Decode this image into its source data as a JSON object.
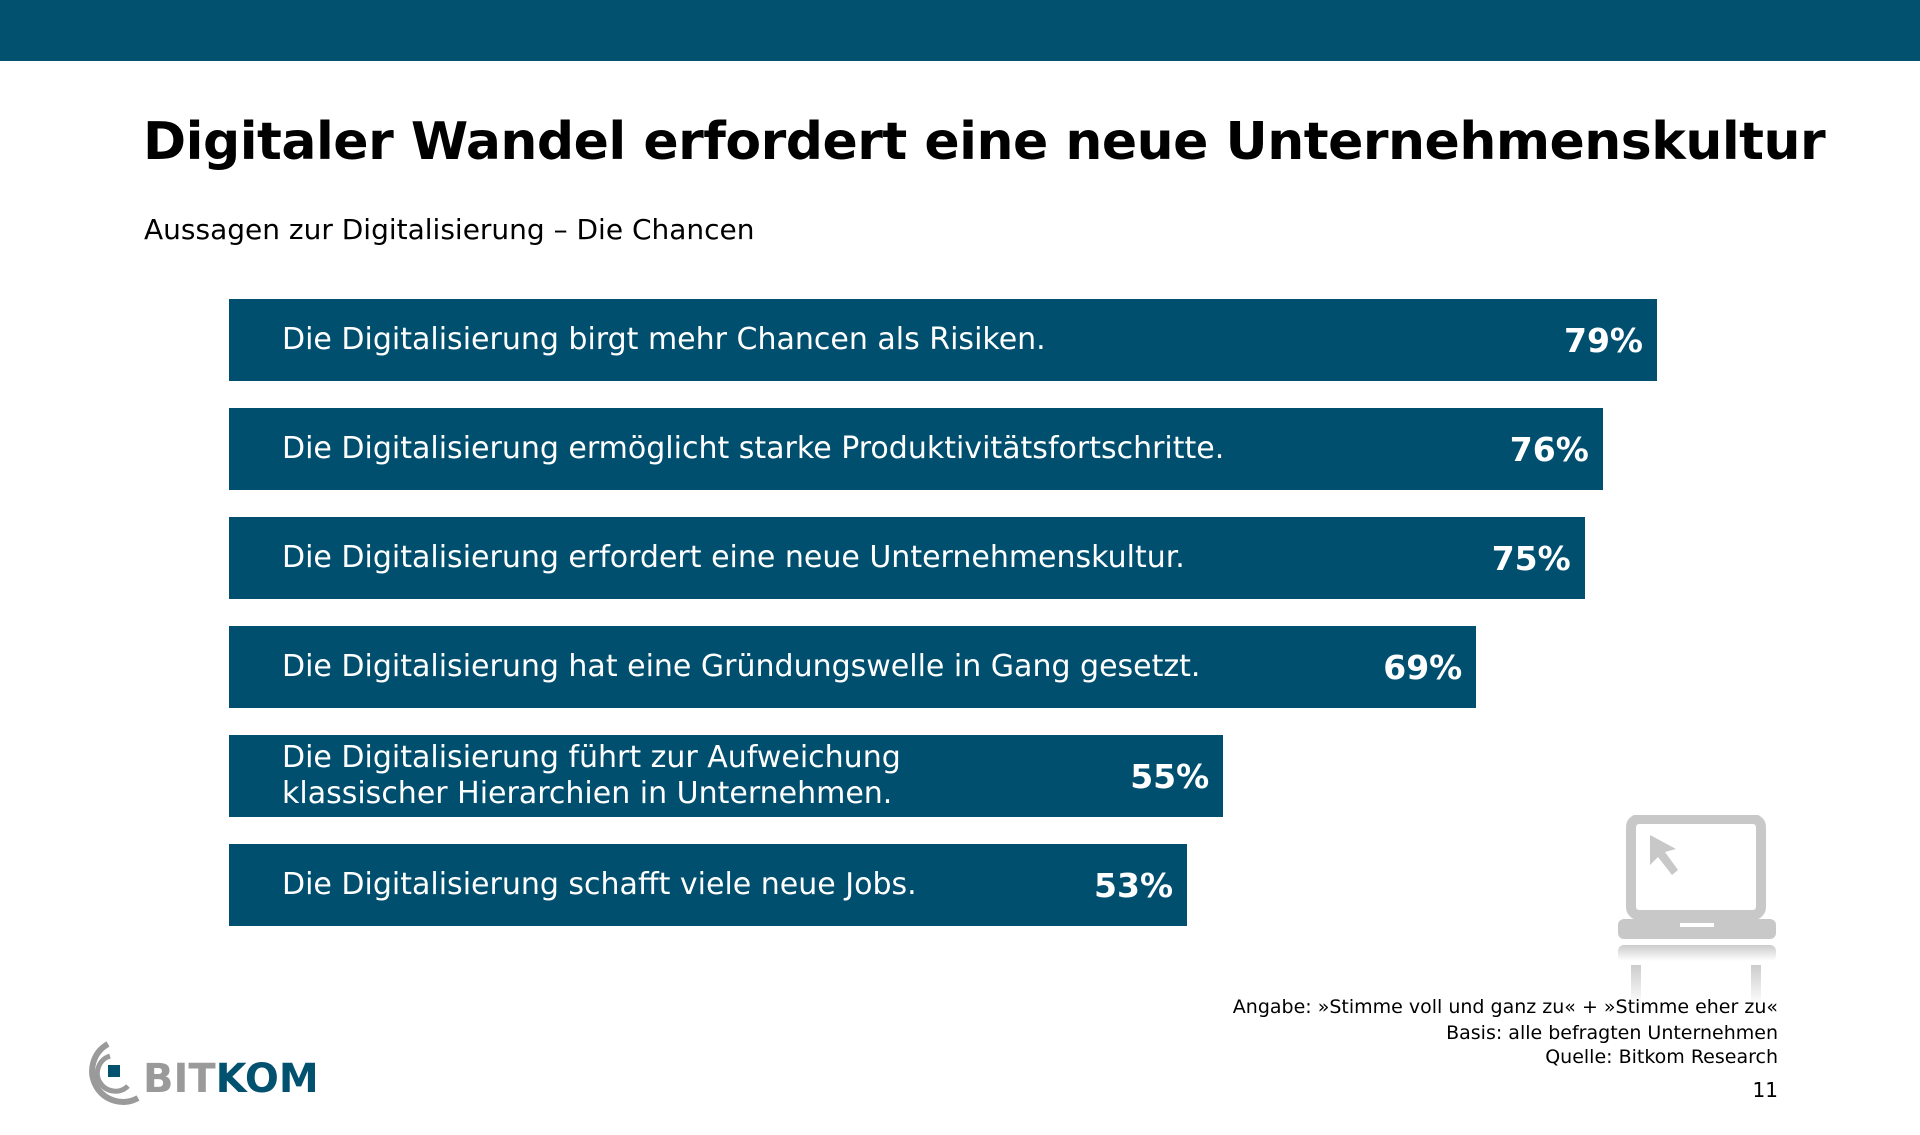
{
  "chart_data": {
    "type": "bar",
    "orientation": "horizontal",
    "title": "Digitaler Wandel erfordert eine neue Unternehmenskultur",
    "subtitle": "Aussagen zur Digitalisierung – Die Chancen",
    "categories": [
      "Die Digitalisierung  birgt mehr Chancen als Risiken.",
      "Die Digitalisierung  ermöglicht starke Produktivitätsfortschritte.",
      "Die Digitalisierung  erfordert eine neue Unternehmenskultur.",
      "Die Digitalisierung  hat eine Gründungswelle  in Gang gesetzt.",
      "Die Digitalisierung  führt zur Aufweichung\nklassischer Hierarchien in Unternehmen.",
      "Die Digitalisierung  schafft viele neue Jobs."
    ],
    "values": [
      79,
      76,
      75,
      69,
      55,
      53
    ],
    "value_labels": [
      "79%",
      "76%",
      "75%",
      "69%",
      "55%",
      "53%"
    ],
    "color": "#004f6f"
  },
  "notes": [
    "Angabe: »Stimme voll und ganz zu« + »Stimme eher zu«",
    "Basis: alle befragten Unternehmen",
    "Quelle: Bitkom Research"
  ],
  "page_number": "11",
  "logo": [
    "BIT",
    "KOM"
  ]
}
